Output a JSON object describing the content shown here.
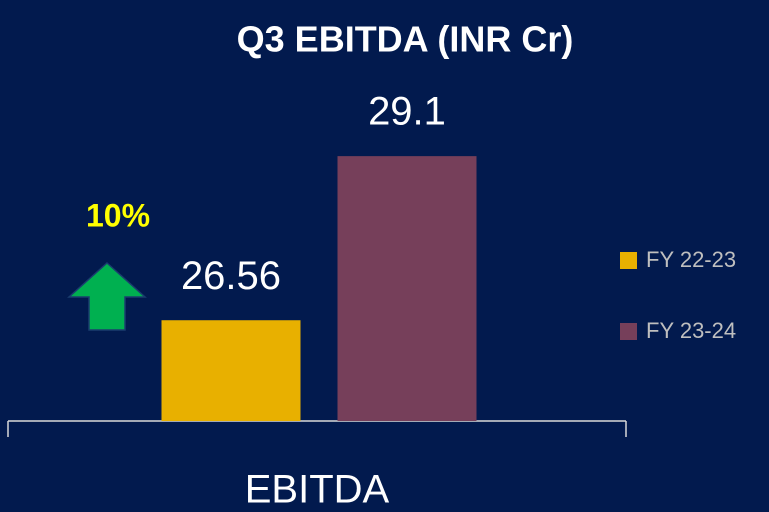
{
  "chart_data": {
    "type": "bar",
    "title": "Q3 EBITDA (INR Cr)",
    "categories": [
      "EBITDA"
    ],
    "series": [
      {
        "name": "FY 22-23",
        "color": "#e8b000",
        "values": [
          26.56
        ]
      },
      {
        "name": "FY 23-24",
        "color": "#763f5a",
        "values": [
          29.1
        ]
      }
    ],
    "ylim": [
      25,
      30
    ],
    "annotation": "10%",
    "legend": "right"
  }
}
